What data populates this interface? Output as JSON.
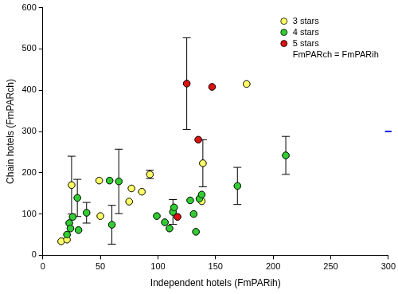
{
  "chart_data": {
    "type": "scatter",
    "x_label": "Independent hotels (FmPARih)",
    "y_label": "Chain hotels (FmPARch)",
    "xlim": [
      0,
      300
    ],
    "xticks": [
      0,
      50,
      100,
      150,
      200,
      250,
      300
    ],
    "ylim": [
      0,
      600
    ],
    "yticks": [
      0,
      100,
      200,
      300,
      400,
      500,
      600
    ],
    "grid": false,
    "legend": "upper right",
    "series": [
      {
        "name": "3 stars",
        "color": "#ffff66",
        "marker": "circle",
        "x": [
          16,
          21,
          25,
          49,
          50,
          75,
          77,
          86,
          93,
          138,
          139,
          177
        ],
        "values": [
          34,
          38,
          170,
          181,
          95,
          130,
          162,
          154,
          196,
          131,
          223,
          415
        ],
        "y_error": [
          null,
          null,
          70,
          null,
          null,
          null,
          null,
          null,
          10,
          null,
          57,
          null
        ]
      },
      {
        "name": "4 stars",
        "color": "#33cc33",
        "marker": "circle",
        "x": [
          21,
          23,
          24,
          26,
          30,
          31,
          38,
          58,
          60,
          66,
          99,
          106,
          110,
          113,
          114,
          128,
          131,
          133,
          136,
          138,
          169,
          211
        ],
        "values": [
          50,
          78,
          65,
          93,
          139,
          61,
          103,
          181,
          74,
          179,
          95,
          80,
          65,
          105,
          116,
          133,
          100,
          57,
          137,
          147,
          168,
          242
        ],
        "y_error": [
          null,
          null,
          null,
          null,
          45,
          null,
          25,
          null,
          47,
          78,
          null,
          null,
          null,
          30,
          null,
          null,
          null,
          null,
          null,
          null,
          45,
          46
        ]
      },
      {
        "name": "5 stars",
        "color": "#dd1111",
        "marker": "circle",
        "x": [
          117,
          125,
          135,
          147
        ],
        "values": [
          93,
          416,
          280,
          408
        ],
        "y_error": [
          null,
          111,
          null,
          null
        ]
      },
      {
        "name": "FmPARch = FmPARih",
        "color": "#0000ff",
        "marker": "line",
        "x": [
          300
        ],
        "values": [
          300
        ],
        "y_error": [
          null
        ]
      }
    ]
  }
}
